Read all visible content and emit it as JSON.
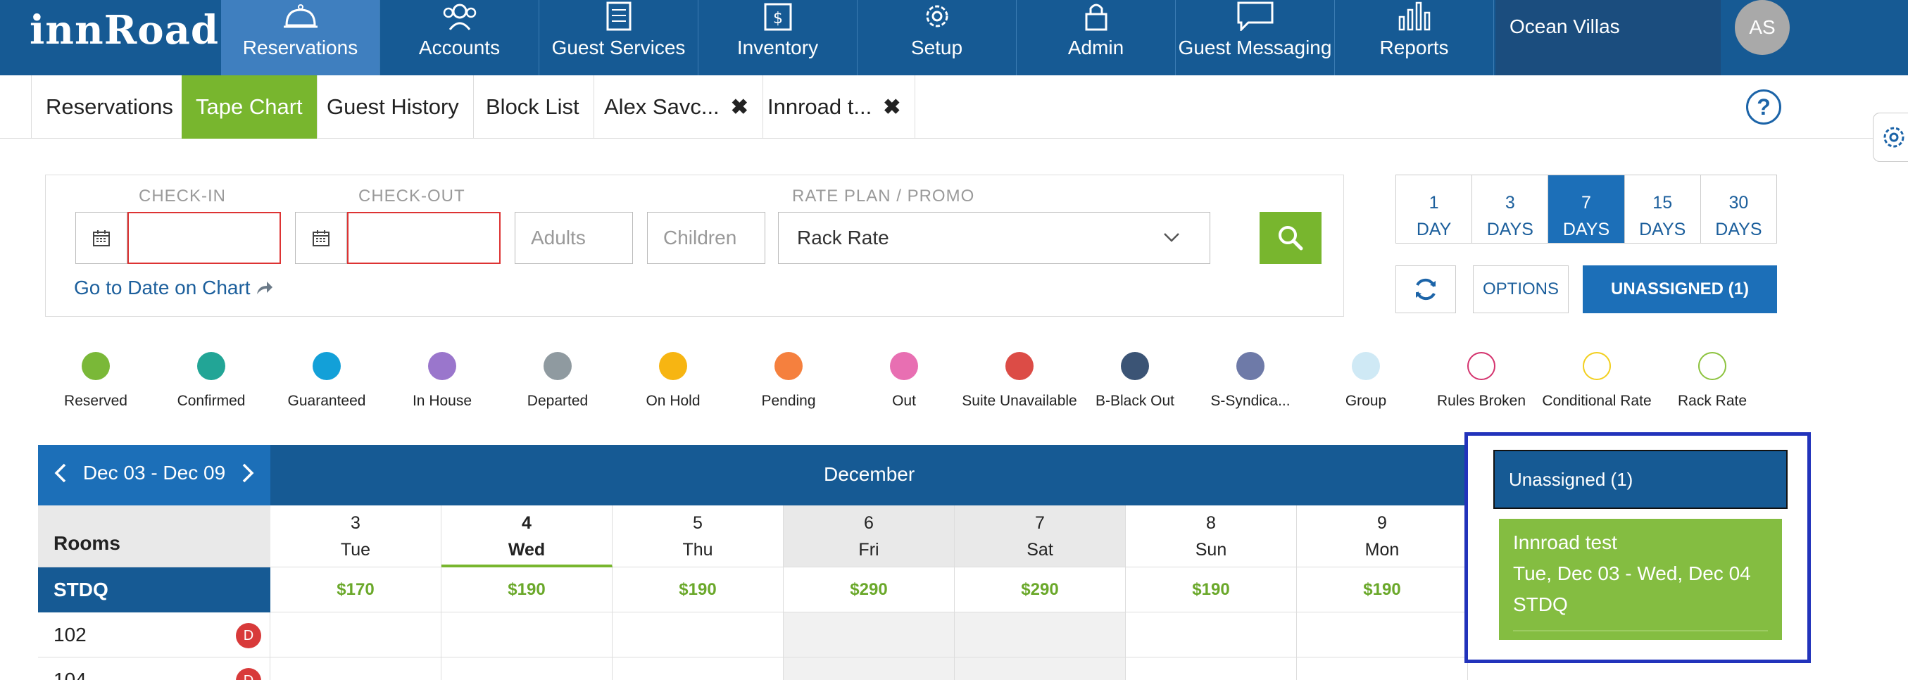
{
  "nav": {
    "logo": "innRoad",
    "items": [
      {
        "label": "Reservations",
        "icon": "bell-icon"
      },
      {
        "label": "Accounts",
        "icon": "users-icon"
      },
      {
        "label": "Guest Services",
        "icon": "clipboard-icon"
      },
      {
        "label": "Inventory",
        "icon": "dollar-box-icon"
      },
      {
        "label": "Setup",
        "icon": "gear-icon"
      },
      {
        "label": "Admin",
        "icon": "lock-icon"
      },
      {
        "label": "Guest Messaging",
        "icon": "chat-icon"
      },
      {
        "label": "Reports",
        "icon": "bar-chart-icon"
      }
    ],
    "property": "Ocean Villas",
    "avatar": "AS"
  },
  "tabs": [
    {
      "label": "Reservations"
    },
    {
      "label": "Tape Chart"
    },
    {
      "label": "Guest History"
    },
    {
      "label": "Block List"
    },
    {
      "label": "Alex Savc...",
      "close": "✖"
    },
    {
      "label": "Innroad t...",
      "close": "✖"
    }
  ],
  "help": "?",
  "search": {
    "checkin_label": "CHECK-IN",
    "checkout_label": "CHECK-OUT",
    "rate_label": "RATE PLAN / PROMO",
    "adults_placeholder": "Adults",
    "children_placeholder": "Children",
    "rate_value": "Rack Rate",
    "goto": "Go to Date on Chart"
  },
  "days": [
    {
      "num": "1",
      "unit": "DAY"
    },
    {
      "num": "3",
      "unit": "DAYS"
    },
    {
      "num": "7",
      "unit": "DAYS"
    },
    {
      "num": "15",
      "unit": "DAYS"
    },
    {
      "num": "30",
      "unit": "DAYS"
    }
  ],
  "tools": {
    "options": "OPTIONS",
    "unassigned": "UNASSIGNED (1)"
  },
  "legend": [
    {
      "label": "Reserved",
      "color": "#7ab838",
      "outline": false
    },
    {
      "label": "Confirmed",
      "color": "#22a596",
      "outline": false
    },
    {
      "label": "Guaranteed",
      "color": "#13a0d8",
      "outline": false
    },
    {
      "label": "In House",
      "color": "#9a76cc",
      "outline": false
    },
    {
      "label": "Departed",
      "color": "#8f9aa0",
      "outline": false
    },
    {
      "label": "On Hold",
      "color": "#f7b512",
      "outline": false
    },
    {
      "label": "Pending",
      "color": "#f5803e",
      "outline": false
    },
    {
      "label": "Out",
      "color": "#e86fb2",
      "outline": false
    },
    {
      "label": "Suite Unavailable",
      "color": "#dc4c46",
      "outline": false
    },
    {
      "label": "B-Black Out",
      "color": "#3b5475",
      "outline": false
    },
    {
      "label": "S-Syndica...",
      "color": "#6e7aa8",
      "outline": false
    },
    {
      "label": "Group",
      "color": "#cfe9f5",
      "outline": false
    },
    {
      "label": "Rules Broken",
      "color": "#d4336e",
      "outline": true
    },
    {
      "label": "Conditional Rate",
      "color": "#f2cf1e",
      "outline": true
    },
    {
      "label": "Rack Rate",
      "color": "#8dc33f",
      "outline": true
    }
  ],
  "calendar": {
    "range": "Dec 03 - Dec 09",
    "month": "December",
    "rooms_header": "Rooms",
    "days": [
      {
        "num": "3",
        "dow": "Tue",
        "weekend": false,
        "today": false
      },
      {
        "num": "4",
        "dow": "Wed",
        "weekend": false,
        "today": true
      },
      {
        "num": "5",
        "dow": "Thu",
        "weekend": false,
        "today": false
      },
      {
        "num": "6",
        "dow": "Fri",
        "weekend": true,
        "today": false
      },
      {
        "num": "7",
        "dow": "Sat",
        "weekend": true,
        "today": false
      },
      {
        "num": "8",
        "dow": "Sun",
        "weekend": false,
        "today": false
      },
      {
        "num": "9",
        "dow": "Mon",
        "weekend": false,
        "today": false
      }
    ],
    "room_type": "STDQ",
    "rates": [
      "$170",
      "$190",
      "$190",
      "$290",
      "$290",
      "$190",
      "$190"
    ],
    "rooms": [
      {
        "name": "102",
        "badge": "D"
      },
      {
        "name": "104",
        "badge": "D"
      }
    ]
  },
  "unassigned_panel": {
    "title": "Unassigned (1)",
    "card": {
      "name": "Innroad test",
      "dates": "Tue, Dec 03 - Wed, Dec 04",
      "room_type": "STDQ"
    }
  }
}
